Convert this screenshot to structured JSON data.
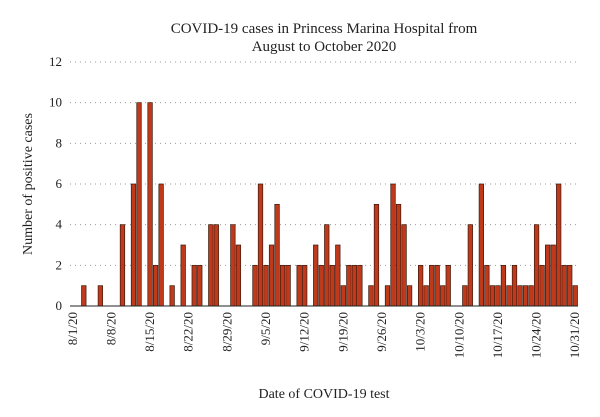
{
  "chart_data": {
    "type": "bar",
    "title_lines": [
      "COVID-19 cases in Princess Marina Hospital from",
      "August to October 2020"
    ],
    "xlabel": "Date of COVID-19 test",
    "ylabel": "Number of positive cases",
    "ylim": [
      0,
      12
    ],
    "yticks": [
      0,
      2,
      4,
      6,
      8,
      10,
      12
    ],
    "grid": "horizontal dotted",
    "bar_color": "#c0391b",
    "x_start_date": "8/1/20",
    "tick_labels": [
      "8/1/20",
      "8/8/20",
      "8/15/20",
      "8/22/20",
      "8/29/20",
      "9/5/20",
      "9/12/20",
      "9/19/20",
      "9/26/20",
      "10/3/20",
      "10/10/20",
      "10/17/20",
      "10/24/20",
      "10/31/20"
    ],
    "values": [
      0,
      0,
      1,
      0,
      0,
      1,
      0,
      0,
      0,
      4,
      0,
      6,
      10,
      0,
      10,
      2,
      6,
      0,
      1,
      0,
      3,
      0,
      2,
      2,
      0,
      4,
      4,
      0,
      0,
      4,
      3,
      0,
      0,
      2,
      6,
      2,
      3,
      5,
      2,
      2,
      0,
      2,
      2,
      0,
      3,
      2,
      4,
      2,
      3,
      1,
      2,
      2,
      2,
      0,
      1,
      5,
      0,
      1,
      6,
      5,
      4,
      1,
      0,
      2,
      1,
      2,
      2,
      1,
      2,
      0,
      0,
      1,
      4,
      0,
      6,
      2,
      1,
      1,
      2,
      1,
      2,
      1,
      1,
      1,
      4,
      2,
      3,
      3,
      6,
      2,
      2,
      1
    ]
  }
}
